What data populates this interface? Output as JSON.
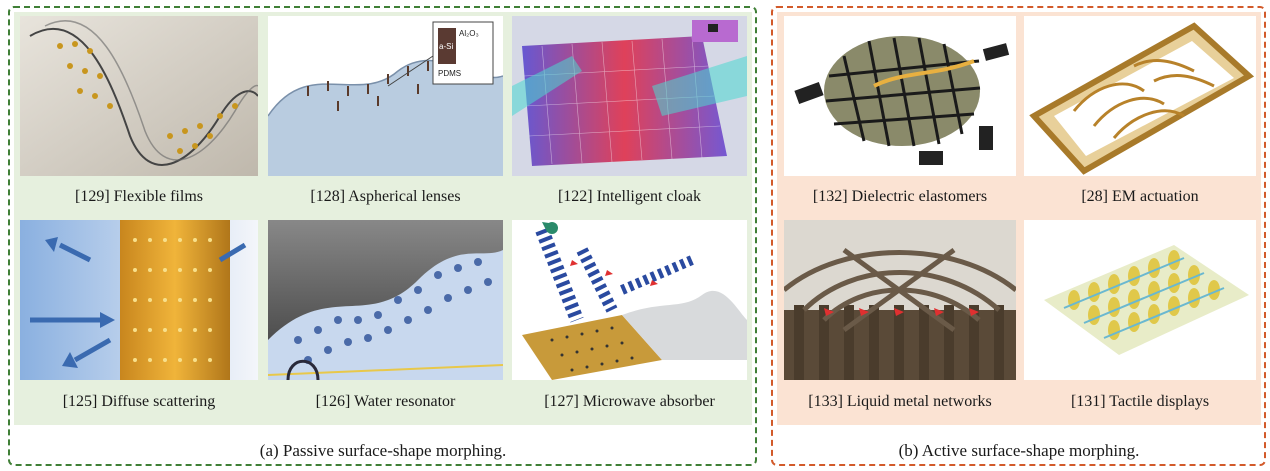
{
  "panel_a": {
    "caption": "(a) Passive surface-shape morphing.",
    "items": [
      {
        "label": "[129] Flexible films"
      },
      {
        "label": "[128] Aspherical lenses"
      },
      {
        "label": "[122] Intelligent cloak"
      },
      {
        "label": "[125] Diffuse scattering"
      },
      {
        "label": "[126] Water resonator"
      },
      {
        "label": "[127] Microwave absorber"
      }
    ],
    "inset_labels": {
      "a_si": "a-Si",
      "al2o3": "Al₂O₃",
      "pdms": "PDMS"
    }
  },
  "panel_b": {
    "caption": "(b) Active surface-shape morphing.",
    "items": [
      {
        "label": "[132] Dielectric elastomers"
      },
      {
        "label": "[28] EM actuation"
      },
      {
        "label": "[133] Liquid metal networks"
      },
      {
        "label": "[131] Tactile displays"
      }
    ]
  },
  "colors": {
    "passive_border": "#3f7f36",
    "active_border": "#d25a2a",
    "passive_fill": "#e6f0de",
    "active_fill": "#fbe3d3"
  }
}
